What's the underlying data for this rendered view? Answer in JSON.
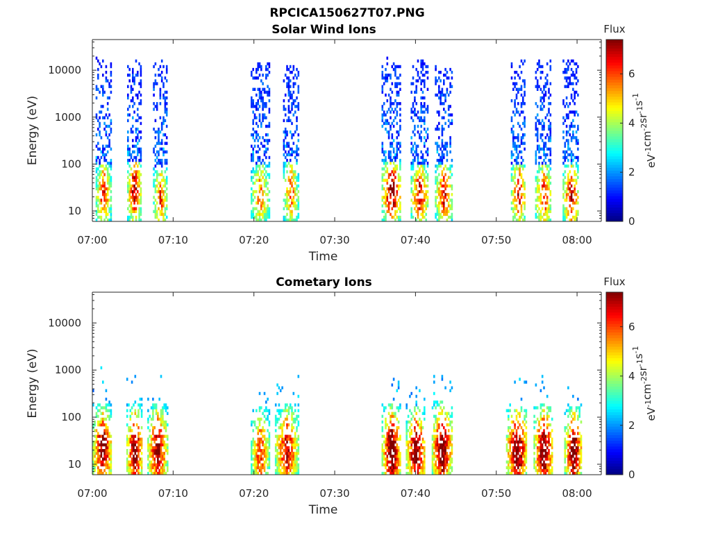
{
  "figure_title": "RPCICA150627T07.PNG",
  "chart_data": [
    {
      "type": "heatmap",
      "title": "Solar Wind Ions",
      "xlabel": "Time",
      "ylabel": "Energy (eV)",
      "xticks": [
        "07:00",
        "07:10",
        "07:20",
        "07:30",
        "07:40",
        "07:50",
        "08:00"
      ],
      "xlim_minutes": [
        0,
        63
      ],
      "yscale": "log",
      "ylim": [
        6,
        45000
      ],
      "yticks": [
        {
          "value": 10,
          "label": "10"
        },
        {
          "value": 100,
          "label": "100"
        },
        {
          "value": 1000,
          "label": "1000"
        },
        {
          "value": 10000,
          "label": "10000"
        }
      ],
      "colorbar": {
        "title": "Flux",
        "label": "eV-1cm-2sr-1s-1",
        "label_main": [
          "eV",
          "cm",
          "sr",
          "s"
        ],
        "label_sup": [
          "-1",
          "-2",
          "-1",
          "-1"
        ],
        "range": [
          0,
          7.4
        ],
        "ticks": [
          0,
          2,
          4,
          6
        ],
        "tick_labels": [
          "0",
          "2",
          "4",
          "6"
        ],
        "colormap": "jet"
      },
      "bursts": [
        {
          "start": 0.4,
          "end": 2.2,
          "peak_flux": 5.4,
          "peak_energy": 25,
          "max_energy": 15000
        },
        {
          "start": 4.3,
          "end": 6.0,
          "peak_flux": 6.2,
          "peak_energy": 30,
          "max_energy": 14000
        },
        {
          "start": 7.5,
          "end": 9.2,
          "peak_flux": 5.0,
          "peak_energy": 22,
          "max_energy": 13000
        },
        {
          "start": 19.6,
          "end": 21.8,
          "peak_flux": 4.6,
          "peak_energy": 25,
          "max_energy": 15000
        },
        {
          "start": 23.6,
          "end": 25.4,
          "peak_flux": 4.8,
          "peak_energy": 28,
          "max_energy": 14000
        },
        {
          "start": 35.8,
          "end": 38.2,
          "peak_flux": 6.6,
          "peak_energy": 28,
          "max_energy": 15000
        },
        {
          "start": 39.4,
          "end": 41.5,
          "peak_flux": 5.8,
          "peak_energy": 24,
          "max_energy": 15000
        },
        {
          "start": 42.4,
          "end": 44.5,
          "peak_flux": 5.6,
          "peak_energy": 26,
          "max_energy": 14000
        },
        {
          "start": 51.8,
          "end": 53.6,
          "peak_flux": 5.8,
          "peak_energy": 25,
          "max_energy": 15000
        },
        {
          "start": 54.8,
          "end": 56.8,
          "peak_flux": 5.4,
          "peak_energy": 24,
          "max_energy": 15000
        },
        {
          "start": 58.2,
          "end": 60.2,
          "peak_flux": 5.8,
          "peak_energy": 24,
          "max_energy": 15000
        }
      ]
    },
    {
      "type": "heatmap",
      "title": "Cometary Ions",
      "xlabel": "Time",
      "ylabel": "Energy (eV)",
      "xticks": [
        "07:00",
        "07:10",
        "07:20",
        "07:30",
        "07:40",
        "07:50",
        "08:00"
      ],
      "xlim_minutes": [
        0,
        63
      ],
      "yscale": "log",
      "ylim": [
        6,
        45000
      ],
      "yticks": [
        {
          "value": 10,
          "label": "10"
        },
        {
          "value": 100,
          "label": "100"
        },
        {
          "value": 1000,
          "label": "1000"
        },
        {
          "value": 10000,
          "label": "10000"
        }
      ],
      "colorbar": {
        "title": "Flux",
        "label": "eV-1cm-2sr-1s-1",
        "label_main": [
          "eV",
          "cm",
          "sr",
          "s"
        ],
        "label_sup": [
          "-1",
          "-2",
          "-1",
          "-1"
        ],
        "range": [
          0,
          7.4
        ],
        "ticks": [
          0,
          2,
          4,
          6
        ],
        "tick_labels": [
          "0",
          "2",
          "4",
          "6"
        ],
        "colormap": "jet"
      },
      "bursts": [
        {
          "start": 0.0,
          "end": 2.4,
          "peak_flux": 6.6,
          "peak_energy": 20,
          "max_energy": 900
        },
        {
          "start": 4.2,
          "end": 6.2,
          "peak_flux": 6.8,
          "peak_energy": 20,
          "max_energy": 900
        },
        {
          "start": 6.8,
          "end": 9.2,
          "peak_flux": 6.4,
          "peak_energy": 20,
          "max_energy": 800
        },
        {
          "start": 19.6,
          "end": 21.8,
          "peak_flux": 5.2,
          "peak_energy": 18,
          "max_energy": 500
        },
        {
          "start": 22.6,
          "end": 25.4,
          "peak_flux": 6.0,
          "peak_energy": 20,
          "max_energy": 600
        },
        {
          "start": 35.8,
          "end": 38.2,
          "peak_flux": 7.0,
          "peak_energy": 20,
          "max_energy": 600
        },
        {
          "start": 38.8,
          "end": 41.2,
          "peak_flux": 6.8,
          "peak_energy": 18,
          "max_energy": 600
        },
        {
          "start": 42.0,
          "end": 44.5,
          "peak_flux": 7.0,
          "peak_energy": 22,
          "max_energy": 700
        },
        {
          "start": 51.2,
          "end": 53.8,
          "peak_flux": 7.0,
          "peak_energy": 20,
          "max_energy": 800
        },
        {
          "start": 54.6,
          "end": 57.0,
          "peak_flux": 7.0,
          "peak_energy": 20,
          "max_energy": 700
        },
        {
          "start": 58.4,
          "end": 60.6,
          "peak_flux": 6.8,
          "peak_energy": 18,
          "max_energy": 600
        }
      ]
    }
  ]
}
